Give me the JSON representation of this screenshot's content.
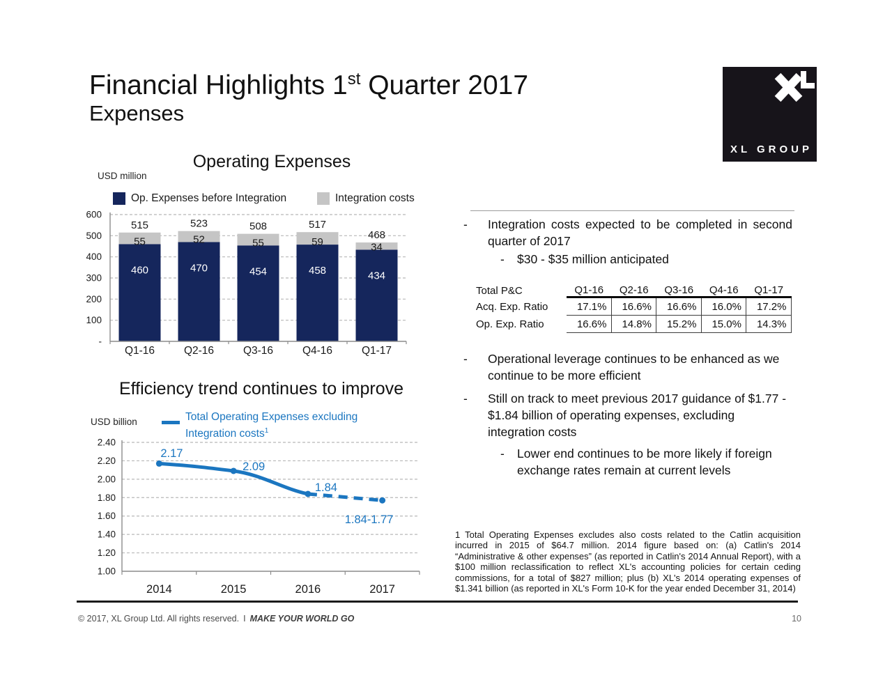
{
  "header": {
    "title_prefix": "Financial Highlights 1",
    "title_sup": "st",
    "title_suffix": " Quarter 2017",
    "subtitle": "Expenses"
  },
  "logo": {
    "wordmark": "XL GROUP"
  },
  "glyphs": {
    "dash": "-"
  },
  "colors": {
    "navy": "#15265C",
    "integration_gray": "#C5C5C5",
    "line_blue": "#1B76C0",
    "grid_gray": "#B8B8B8",
    "axis_gray": "#8C8C8C"
  },
  "chart_data": [
    {
      "type": "bar",
      "stacked": true,
      "title": "Operating Expenses",
      "unit_label": "USD million",
      "categories": [
        "Q1-16",
        "Q2-16",
        "Q3-16",
        "Q4-16",
        "Q1-17"
      ],
      "series": [
        {
          "name": "Op. Expenses before Integration",
          "color": "#15265C",
          "values": [
            460,
            470,
            454,
            458,
            434
          ]
        },
        {
          "name": "Integration costs",
          "color": "#C5C5C5",
          "values": [
            55,
            52,
            55,
            59,
            34
          ]
        }
      ],
      "totals": [
        515,
        523,
        508,
        517,
        468
      ],
      "ylim": [
        0,
        600
      ],
      "ytick_step": 100,
      "yticks": [
        "-",
        "100",
        "200",
        "300",
        "400",
        "500",
        "600"
      ],
      "grid": "dashed-horizontal",
      "legend_position": "top"
    },
    {
      "type": "line",
      "title": "Efficiency trend continues to improve",
      "unit_label": "USD billion",
      "legend_line1": "Total Operating Expenses excluding",
      "legend_line2": "Integration costs",
      "legend_sup": "1",
      "categories": [
        "2014",
        "2015",
        "2016",
        "2017"
      ],
      "values": [
        2.17,
        2.09,
        1.84,
        1.77
      ],
      "point_labels": [
        "2.17",
        "2.09",
        "1.84"
      ],
      "dashed_segment_label": "1.84-1.77",
      "dashed_from_index": 2,
      "ylim": [
        1.0,
        2.4
      ],
      "ytick_step": 0.2,
      "yticks": [
        "1.00",
        "1.20",
        "1.40",
        "1.60",
        "1.80",
        "2.00",
        "2.20",
        "2.40"
      ],
      "color": "#1B76C0",
      "grid": "dashed-horizontal",
      "legend_position": "top"
    }
  ],
  "right_panel": {
    "bullet1": "Integration costs expected to be completed in second quarter of 2017",
    "bullet1_sub": "$30 - $35 million anticipated",
    "table": {
      "title": "Total P&C",
      "columns": [
        "Q1-16",
        "Q2-16",
        "Q3-16",
        "Q4-16",
        "Q1-17"
      ],
      "rows": [
        {
          "label": "Acq. Exp. Ratio",
          "values": [
            "17.1%",
            "16.6%",
            "16.6%",
            "16.0%",
            "17.2%"
          ]
        },
        {
          "label": "Op. Exp. Ratio",
          "values": [
            "16.6%",
            "14.8%",
            "15.2%",
            "15.0%",
            "14.3%"
          ]
        }
      ]
    },
    "bullet2": "Operational leverage continues to be enhanced as we continue to be more efficient",
    "bullet3": "Still on track to meet previous 2017 guidance of $1.77 - $1.84 billion of operating expenses, excluding integration costs",
    "bullet3_sub": "Lower end continues to be more likely if foreign exchange rates remain at current levels",
    "footnote": "1 Total Operating Expenses excludes also costs related to the Catlin acquisition incurred in 2015 of $64.7 million. 2014 figure based on: (a) Catlin's 2014 “Administrative & other expenses” (as reported in Catlin's 2014 Annual Report), with a $100 million reclassification to reflect XL's accounting policies for certain ceding commissions, for a total of $827 million; plus (b) XL's 2014 operating expenses of $1.341 billion (as reported in XL's Form 10-K for the year ended December 31, 2014)"
  },
  "footer": {
    "copyright": "© 2017, XL Group Ltd. All rights reserved.",
    "separator": "I",
    "tagline": "MAKE YOUR WORLD GO",
    "page": "10"
  }
}
